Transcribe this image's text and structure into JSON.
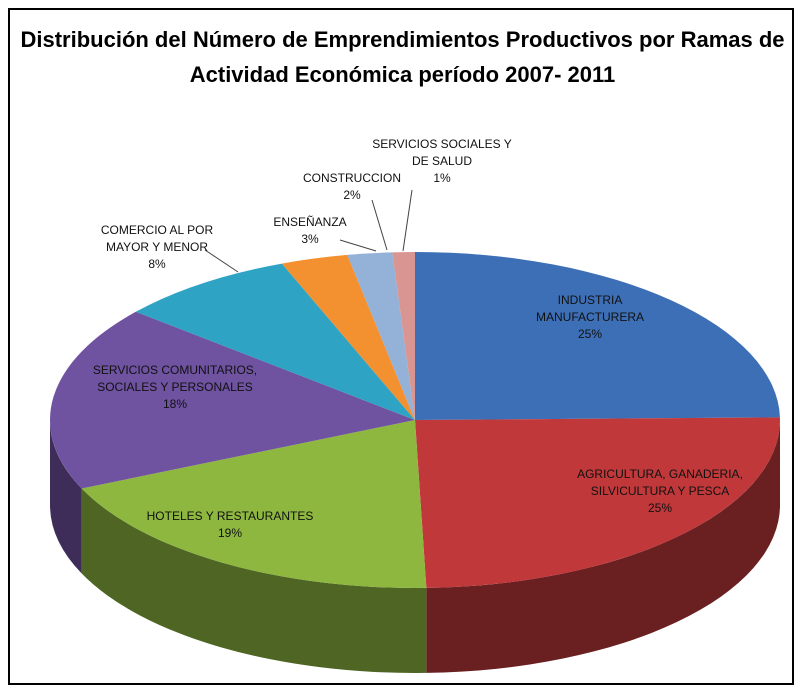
{
  "chart_data": {
    "type": "pie",
    "title": "Distribución del Número de Emprendimientos Productivos por Ramas de Actividad Económica período 2007- 2011",
    "categories": [
      "INDUSTRIA MANUFACTURERA",
      "AGRICULTURA, GANADERIA, SILVICULTURA Y PESCA",
      "HOTELES Y RESTAURANTES",
      "SERVICIOS COMUNITARIOS, SOCIALES Y PERSONALES",
      "COMERCIO AL POR MAYOR Y MENOR",
      "ENSEÑANZA",
      "CONSTRUCCION",
      "SERVICIOS SOCIALES Y DE SALUD"
    ],
    "values": [
      25,
      25,
      19,
      18,
      8,
      3,
      2,
      1
    ],
    "value_labels": [
      "25%",
      "25%",
      "19%",
      "18%",
      "8%",
      "3%",
      "2%",
      "1%"
    ],
    "colors": [
      "#3d6fb6",
      "#c0383a",
      "#8eb73f",
      "#6f52a0",
      "#2ea3c4",
      "#f3902f",
      "#94b2d8",
      "#d99592"
    ]
  }
}
